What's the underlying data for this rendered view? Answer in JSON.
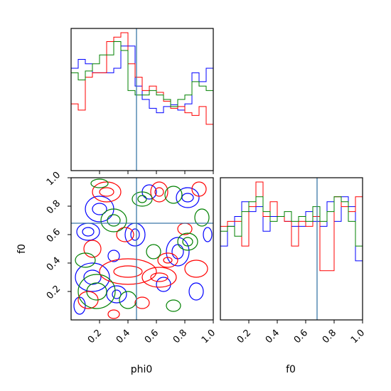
{
  "chart_data": {
    "type": "corner",
    "parameters": [
      "phi0",
      "f0"
    ],
    "truths": {
      "phi0": 0.46,
      "f0": 0.68
    },
    "truth_color": "#3b78a8",
    "series": [
      {
        "color": "#0000ff"
      },
      {
        "color": "#ff0000"
      },
      {
        "color": "#008000"
      }
    ],
    "axes": {
      "range": [
        0.0,
        1.0
      ],
      "ticks": [
        0.2,
        0.4,
        0.6,
        0.8,
        1.0
      ],
      "tick_labels": [
        "0.2",
        "0.4",
        "0.6",
        "0.8",
        "1.0"
      ]
    },
    "hist_phi0": {
      "bins": 20,
      "density_max": 1.55,
      "series": [
        [
          1.15,
          1.25,
          1.2,
          1.1,
          1.1,
          1.1,
          1.15,
          1.4,
          1.4,
          0.95,
          0.8,
          0.7,
          0.65,
          0.72,
          0.74,
          0.68,
          0.75,
          1.1,
          1.0,
          1.15
        ],
        [
          0.75,
          0.68,
          1.05,
          1.1,
          1.1,
          1.45,
          1.5,
          1.55,
          1.2,
          1.05,
          0.9,
          0.95,
          0.88,
          0.78,
          0.7,
          0.72,
          0.65,
          0.62,
          0.72,
          0.52
        ],
        [
          1.1,
          1.02,
          1.12,
          1.2,
          1.3,
          1.3,
          1.45,
          1.35,
          0.9,
          0.85,
          0.85,
          0.9,
          0.85,
          0.8,
          0.72,
          0.8,
          0.85,
          1.0,
          0.95,
          0.9
        ]
      ]
    },
    "hist_f0": {
      "bins": 20,
      "density_max": 1.4,
      "series": [
        [
          0.75,
          0.95,
          1.05,
          1.2,
          1.1,
          1.15,
          0.9,
          1.05,
          1.05,
          1.0,
          0.95,
          0.95,
          1.1,
          1.0,
          0.95,
          1.2,
          1.0,
          1.25,
          1.15,
          0.6
        ],
        [
          0.95,
          1.0,
          1.0,
          0.75,
          1.15,
          1.4,
          1.05,
          1.2,
          1.05,
          1.0,
          0.75,
          1.0,
          0.95,
          1.05,
          0.5,
          0.5,
          1.25,
          1.15,
          1.1,
          1.25
        ],
        [
          0.9,
          0.95,
          0.85,
          1.1,
          1.2,
          1.25,
          1.1,
          1.0,
          1.05,
          1.1,
          1.0,
          1.05,
          1.0,
          1.15,
          1.0,
          1.1,
          1.25,
          1.2,
          1.0,
          0.75
        ]
      ]
    },
    "contours_phi0_f0": [
      {
        "color": "#0000ff",
        "rings": [
          {
            "c": [
              0.12,
              0.62
            ],
            "r": [
              0.08,
              0.06
            ]
          },
          {
            "c": [
              0.12,
              0.62
            ],
            "r": [
              0.04,
              0.03
            ]
          },
          {
            "c": [
              0.2,
              0.78
            ],
            "r": [
              0.1,
              0.09
            ]
          },
          {
            "c": [
              0.2,
              0.78
            ],
            "r": [
              0.05,
              0.04
            ]
          },
          {
            "c": [
              0.15,
              0.3
            ],
            "r": [
              0.12,
              0.1
            ]
          },
          {
            "c": [
              0.15,
              0.3
            ],
            "r": [
              0.06,
              0.05
            ]
          },
          {
            "c": [
              0.32,
              0.18
            ],
            "r": [
              0.07,
              0.06
            ]
          },
          {
            "c": [
              0.32,
              0.18
            ],
            "r": [
              0.03,
              0.03
            ]
          },
          {
            "c": [
              0.45,
              0.6
            ],
            "r": [
              0.07,
              0.08
            ]
          },
          {
            "c": [
              0.45,
              0.6
            ],
            "r": [
              0.03,
              0.04
            ]
          },
          {
            "c": [
              0.75,
              0.48
            ],
            "r": [
              0.08,
              0.1
            ]
          },
          {
            "c": [
              0.75,
              0.48
            ],
            "r": [
              0.04,
              0.05
            ]
          },
          {
            "c": [
              0.82,
              0.86
            ],
            "r": [
              0.08,
              0.07
            ]
          },
          {
            "c": [
              0.82,
              0.86
            ],
            "r": [
              0.04,
              0.03
            ]
          },
          {
            "c": [
              0.65,
              0.25
            ],
            "r": [
              0.05,
              0.05
            ]
          },
          {
            "c": [
              0.88,
              0.2
            ],
            "r": [
              0.05,
              0.06
            ]
          },
          {
            "c": [
              0.06,
              0.1
            ],
            "r": [
              0.04,
              0.06
            ]
          },
          {
            "c": [
              0.55,
              0.9
            ],
            "r": [
              0.05,
              0.05
            ]
          },
          {
            "c": [
              0.3,
              0.45
            ],
            "r": [
              0.04,
              0.04
            ]
          },
          {
            "c": [
              0.96,
              0.6
            ],
            "r": [
              0.03,
              0.05
            ]
          }
        ]
      },
      {
        "color": "#ff0000",
        "rings": [
          {
            "c": [
              0.4,
              0.34
            ],
            "r": [
              0.2,
              0.09
            ]
          },
          {
            "c": [
              0.4,
              0.34
            ],
            "r": [
              0.1,
              0.04
            ]
          },
          {
            "c": [
              0.62,
              0.3
            ],
            "r": [
              0.12,
              0.07
            ]
          },
          {
            "c": [
              0.62,
              0.3
            ],
            "r": [
              0.06,
              0.03
            ]
          },
          {
            "c": [
              0.25,
              0.9
            ],
            "r": [
              0.1,
              0.07
            ]
          },
          {
            "c": [
              0.25,
              0.9
            ],
            "r": [
              0.05,
              0.03
            ]
          },
          {
            "c": [
              0.62,
              0.9
            ],
            "r": [
              0.06,
              0.07
            ]
          },
          {
            "c": [
              0.62,
              0.9
            ],
            "r": [
              0.03,
              0.03
            ]
          },
          {
            "c": [
              0.38,
              0.6
            ],
            "r": [
              0.06,
              0.05
            ]
          },
          {
            "c": [
              0.15,
              0.5
            ],
            "r": [
              0.06,
              0.06
            ]
          },
          {
            "c": [
              0.68,
              0.42
            ],
            "r": [
              0.07,
              0.05
            ]
          },
          {
            "c": [
              0.68,
              0.42
            ],
            "r": [
              0.03,
              0.02
            ]
          },
          {
            "c": [
              0.12,
              0.14
            ],
            "r": [
              0.07,
              0.06
            ]
          },
          {
            "c": [
              0.5,
              0.12
            ],
            "r": [
              0.05,
              0.04
            ]
          },
          {
            "c": [
              0.88,
              0.36
            ],
            "r": [
              0.08,
              0.06
            ]
          },
          {
            "c": [
              0.8,
              0.64
            ],
            "r": [
              0.05,
              0.04
            ]
          },
          {
            "c": [
              0.9,
              0.92
            ],
            "r": [
              0.05,
              0.05
            ]
          },
          {
            "c": [
              0.3,
              0.04
            ],
            "r": [
              0.04,
              0.03
            ]
          }
        ]
      },
      {
        "color": "#008000",
        "rings": [
          {
            "c": [
              0.18,
              0.2
            ],
            "r": [
              0.13,
              0.12
            ]
          },
          {
            "c": [
              0.18,
              0.2
            ],
            "r": [
              0.07,
              0.06
            ]
          },
          {
            "c": [
              0.3,
              0.7
            ],
            "r": [
              0.09,
              0.08
            ]
          },
          {
            "c": [
              0.3,
              0.7
            ],
            "r": [
              0.045,
              0.04
            ]
          },
          {
            "c": [
              0.5,
              0.85
            ],
            "r": [
              0.07,
              0.05
            ]
          },
          {
            "c": [
              0.5,
              0.85
            ],
            "r": [
              0.03,
              0.025
            ]
          },
          {
            "c": [
              0.72,
              0.88
            ],
            "r": [
              0.06,
              0.06
            ]
          },
          {
            "c": [
              0.82,
              0.55
            ],
            "r": [
              0.07,
              0.06
            ]
          },
          {
            "c": [
              0.82,
              0.55
            ],
            "r": [
              0.035,
              0.03
            ]
          },
          {
            "c": [
              0.58,
              0.48
            ],
            "r": [
              0.05,
              0.05
            ]
          },
          {
            "c": [
              0.1,
              0.42
            ],
            "r": [
              0.07,
              0.05
            ]
          },
          {
            "c": [
              0.92,
              0.72
            ],
            "r": [
              0.05,
              0.06
            ]
          },
          {
            "c": [
              0.4,
              0.14
            ],
            "r": [
              0.06,
              0.06
            ]
          },
          {
            "c": [
              0.72,
              0.1
            ],
            "r": [
              0.05,
              0.04
            ]
          },
          {
            "c": [
              0.2,
              0.96
            ],
            "r": [
              0.06,
              0.03
            ]
          }
        ]
      }
    ]
  }
}
